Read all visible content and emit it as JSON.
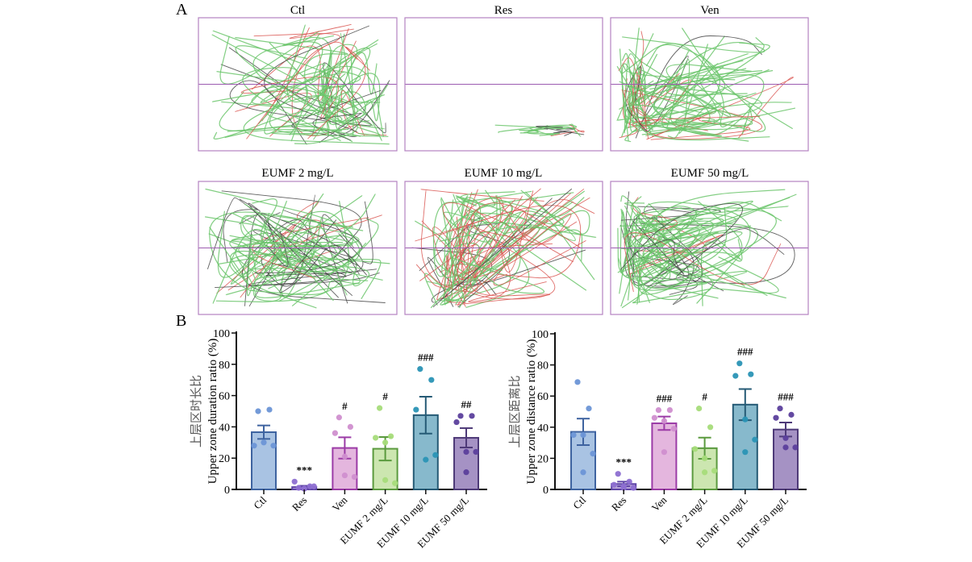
{
  "figure": {
    "panel_a_label": "A",
    "panel_b_label": "B",
    "trajectory_panels": [
      {
        "title": "Ctl",
        "pattern": "ctl"
      },
      {
        "title": "Res",
        "pattern": "res"
      },
      {
        "title": "Ven",
        "pattern": "ven"
      },
      {
        "title": "EUMF 2 mg/L",
        "pattern": "e2"
      },
      {
        "title": "EUMF 10 mg/L",
        "pattern": "e10"
      },
      {
        "title": "EUMF 50 mg/L",
        "pattern": "e50"
      }
    ],
    "trajectory_colors": {
      "frame": "#b583c2",
      "midline": "#9c5bb0",
      "fast": "#6cc66c",
      "medium": "#d9534f",
      "slow": "#444444"
    }
  },
  "chart_data": [
    {
      "type": "bar",
      "title": "",
      "ylabel": "上层区时长比\nUpper zone duration ratio (%)",
      "ylabel_cn": "上层区时长比",
      "ylabel_en": "Upper zone duration ratio (%)",
      "xlabel": "",
      "ylim": [
        0,
        100
      ],
      "yticks": [
        0,
        20,
        40,
        60,
        80,
        100
      ],
      "categories": [
        "Ctl",
        "Res",
        "Ven",
        "EUMF 2 mg/L",
        "EUMF 10 mg/L",
        "EUMF 50 mg/L"
      ],
      "values": [
        36.6,
        1.5,
        26.5,
        26.0,
        47.5,
        33.0
      ],
      "sem": [
        4.3,
        0.8,
        6.8,
        7.5,
        11.8,
        6.2
      ],
      "points": [
        [
          50,
          51,
          28,
          30,
          28
        ],
        [
          1,
          2,
          5,
          0.5,
          2,
          0.5
        ],
        [
          46,
          40,
          36,
          21,
          8,
          9
        ],
        [
          52,
          34,
          33,
          30,
          4,
          6
        ],
        [
          77,
          70,
          51,
          19,
          22
        ],
        [
          47,
          47,
          43,
          24,
          24,
          11
        ]
      ],
      "significance": [
        "",
        "***",
        "#",
        "#",
        "###",
        "##"
      ],
      "fill_colors": [
        "#a9c3e3",
        "#b9a6d8",
        "#e4b6de",
        "#cce6b0",
        "#87b9cc",
        "#a592c4"
      ],
      "edge_colors": [
        "#3e63a0",
        "#5f45a6",
        "#9b3ba6",
        "#5a9a3e",
        "#255a75",
        "#4e3a78"
      ],
      "dot_colors": [
        "#6b95d6",
        "#8d6fd1",
        "#d08fcf",
        "#a6dc7a",
        "#2a93b5",
        "#5b3f9c"
      ],
      "grid": false
    },
    {
      "type": "bar",
      "title": "",
      "ylabel": "上层区距离比\nUpper zone distance ratio (%)",
      "ylabel_cn": "上层区距离比",
      "ylabel_en": "Upper zone distance ratio (%)",
      "xlabel": "",
      "ylim": [
        0,
        100
      ],
      "yticks": [
        0,
        20,
        40,
        60,
        80,
        100
      ],
      "categories": [
        "Ctl",
        "Res",
        "Ven",
        "EUMF 2 mg/L",
        "EUMF 10 mg/L",
        "EUMF 50 mg/L"
      ],
      "values": [
        37.0,
        3.5,
        42.5,
        26.5,
        54.5,
        38.5
      ],
      "sem": [
        8.5,
        1.5,
        4.3,
        6.8,
        10.0,
        4.5
      ],
      "points": [
        [
          69,
          52,
          35,
          35,
          23,
          11
        ],
        [
          10,
          5,
          3,
          2,
          1,
          1
        ],
        [
          51,
          51,
          46,
          44,
          39,
          24
        ],
        [
          52,
          40,
          26,
          20,
          12,
          11
        ],
        [
          81,
          74,
          73,
          45,
          32,
          24
        ],
        [
          52,
          48,
          46,
          33,
          27,
          27
        ]
      ],
      "significance": [
        "",
        "***",
        "###",
        "#",
        "###",
        "###"
      ],
      "fill_colors": [
        "#a9c3e3",
        "#b9a6d8",
        "#e4b6de",
        "#cce6b0",
        "#87b9cc",
        "#a592c4"
      ],
      "edge_colors": [
        "#3e63a0",
        "#5f45a6",
        "#9b3ba6",
        "#5a9a3e",
        "#255a75",
        "#4e3a78"
      ],
      "dot_colors": [
        "#6b95d6",
        "#8d6fd1",
        "#d08fcf",
        "#a6dc7a",
        "#2a93b5",
        "#5b3f9c"
      ],
      "grid": false
    }
  ]
}
